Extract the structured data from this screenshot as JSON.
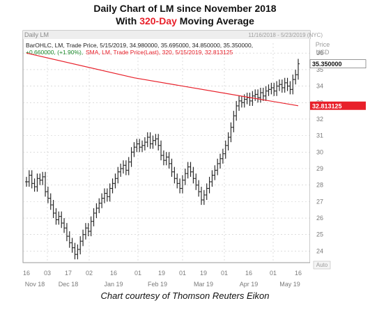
{
  "title": {
    "line1": "Daily Chart of LM since November 2018",
    "line2_prefix": "With ",
    "line2_highlight": "320-Day",
    "line2_suffix": " Moving Average"
  },
  "caption": "Chart courtesy of Thomson Reuters Eikon",
  "colors": {
    "highlight": "#e8202a",
    "bars": "#1a1a1a",
    "sma": "#e8202a",
    "grid": "#c8c8c8",
    "frame_bg": "#eeeeee"
  },
  "chart_data": {
    "type": "line",
    "panel_label": "Daily LM",
    "date_range": "11/16/2018 - 5/23/2019 (NYC)",
    "legend": [
      {
        "key": "ohlc",
        "text": "BarOHLC, LM, Trade Price, 5/15/2019, 34.980000, 35.695000, 34.850000, 35.350000,"
      },
      {
        "key": "change",
        "text": "+0.660000, (+1.90%),"
      },
      {
        "key": "sma",
        "text": "SMA, LM, Trade Price(Last), 320, 5/15/2019, 32.813125"
      }
    ],
    "axis_title": "Price",
    "axis_unit": "USD",
    "axis_auto": "Auto",
    "ylim": [
      23.3,
      36.6
    ],
    "y_ticks": [
      24,
      25,
      26,
      27,
      28,
      29,
      30,
      31,
      32,
      33,
      34,
      35,
      36
    ],
    "x_day_labels": [
      "16",
      "03",
      "17",
      "02",
      "16",
      "01",
      "19",
      "01",
      "19",
      "01",
      "16",
      "01",
      "16"
    ],
    "x_month_labels": [
      "Nov 18",
      "Dec 18",
      "Jan 19",
      "Feb 19",
      "Mar 19",
      "Apr 19",
      "May 19"
    ],
    "last_price_label": "35.350000",
    "sma_label": "32.813125",
    "series": [
      {
        "name": "BarOHLC",
        "type": "ohlc",
        "close": [
          28.2,
          28.6,
          28.1,
          27.9,
          28.4,
          28.3,
          28.5,
          27.6,
          27.2,
          26.8,
          26.3,
          25.9,
          26.1,
          25.7,
          25.4,
          24.9,
          24.5,
          24.2,
          23.8,
          24.1,
          24.6,
          25.0,
          25.4,
          25.2,
          25.8,
          26.3,
          26.6,
          26.9,
          27.2,
          27.5,
          27.3,
          27.8,
          28.1,
          28.4,
          28.8,
          29.0,
          29.2,
          28.9,
          29.4,
          30.0,
          30.3,
          30.5,
          30.3,
          30.4,
          30.6,
          30.9,
          30.5,
          30.7,
          30.8,
          30.4,
          29.8,
          29.5,
          29.7,
          29.3,
          28.8,
          28.4,
          28.1,
          27.8,
          28.3,
          28.7,
          29.1,
          28.8,
          28.4,
          28.0,
          27.6,
          27.1,
          27.4,
          27.8,
          28.2,
          28.6,
          28.9,
          29.3,
          29.6,
          29.9,
          30.4,
          30.9,
          31.5,
          32.2,
          32.8,
          33.1,
          33.0,
          33.2,
          33.3,
          33.1,
          33.4,
          33.5,
          33.3,
          33.6,
          33.4,
          33.7,
          33.8,
          33.9,
          33.7,
          34.0,
          34.1,
          33.9,
          34.2,
          34.0,
          33.8,
          34.4,
          34.69,
          35.35
        ],
        "high_offset": 0.3,
        "low_offset": 0.3
      },
      {
        "name": "SMA (320)",
        "type": "line",
        "x": [
          0,
          40,
          101
        ],
        "y": [
          36.0,
          34.5,
          32.81
        ]
      }
    ]
  }
}
